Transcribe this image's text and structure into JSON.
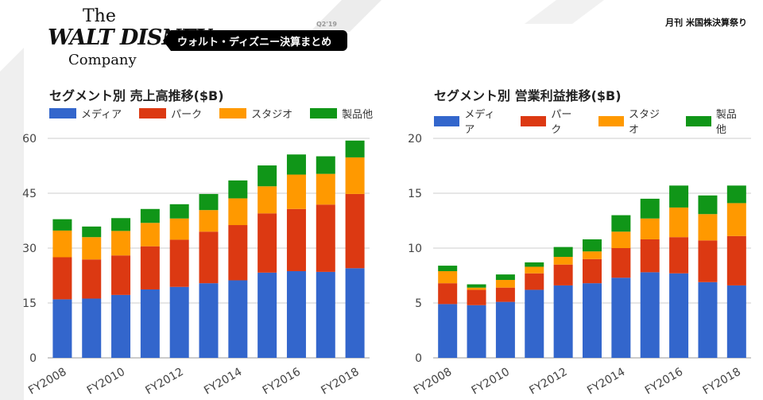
{
  "header": {
    "logo_the": "The",
    "logo_walt_disney": "WALT DISNEY",
    "logo_company": "Company",
    "quarter": "Q2'19",
    "banner_title": "ウォルト・ディズニー決算まとめ",
    "publication": "月刊 米国株決算祭り"
  },
  "colors": {
    "media": "#3366cc",
    "parks": "#dc3912",
    "studio": "#ff9900",
    "products": "#109618"
  },
  "chart_data": [
    {
      "type": "bar",
      "stacked": true,
      "title": "セグメント別 売上高推移($B)",
      "categories": [
        "FY2008",
        "FY2009",
        "FY2010",
        "FY2011",
        "FY2012",
        "FY2013",
        "FY2014",
        "FY2015",
        "FY2016",
        "FY2017",
        "FY2018"
      ],
      "x_tick_labels": [
        "FY2008",
        "FY2010",
        "FY2012",
        "FY2014",
        "FY2016",
        "FY2018"
      ],
      "y_ticks": [
        "0",
        "15",
        "30",
        "45",
        "60"
      ],
      "ylim": [
        0,
        60
      ],
      "legend_position": "top",
      "grid": true,
      "series": [
        {
          "name": "メディア",
          "color_key": "media",
          "values": [
            16.0,
            16.2,
            17.2,
            18.7,
            19.4,
            20.4,
            21.2,
            23.3,
            23.7,
            23.5,
            24.5
          ]
        },
        {
          "name": "パーク",
          "color_key": "parks",
          "values": [
            11.5,
            10.7,
            10.8,
            11.8,
            12.9,
            14.1,
            15.1,
            16.2,
            17.0,
            18.4,
            20.3
          ]
        },
        {
          "name": "スタジオ",
          "color_key": "studio",
          "values": [
            7.3,
            6.1,
            6.7,
            6.4,
            5.8,
            5.9,
            7.3,
            7.4,
            9.4,
            8.4,
            10.0
          ]
        },
        {
          "name": "製品他",
          "color_key": "products",
          "values": [
            3.1,
            2.9,
            3.5,
            3.8,
            3.9,
            4.4,
            4.9,
            5.7,
            5.5,
            4.8,
            4.6
          ]
        }
      ]
    },
    {
      "type": "bar",
      "stacked": true,
      "title": "セグメント別 営業利益推移($B)",
      "categories": [
        "FY2008",
        "FY2009",
        "FY2010",
        "FY2011",
        "FY2012",
        "FY2013",
        "FY2014",
        "FY2015",
        "FY2016",
        "FY2017",
        "FY2018"
      ],
      "x_tick_labels": [
        "FY2008",
        "FY2010",
        "FY2012",
        "FY2014",
        "FY2016",
        "FY2018"
      ],
      "y_ticks": [
        "0",
        "5",
        "10",
        "15",
        "20"
      ],
      "ylim": [
        0,
        20
      ],
      "legend_position": "top",
      "grid": true,
      "series": [
        {
          "name": "メディア",
          "color_key": "media",
          "values": [
            4.9,
            4.8,
            5.1,
            6.2,
            6.6,
            6.8,
            7.3,
            7.8,
            7.7,
            6.9,
            6.6
          ]
        },
        {
          "name": "パーク",
          "color_key": "parks",
          "values": [
            1.9,
            1.4,
            1.3,
            1.5,
            1.9,
            2.2,
            2.7,
            3.0,
            3.3,
            3.8,
            4.5
          ]
        },
        {
          "name": "スタジオ",
          "color_key": "studio",
          "values": [
            1.1,
            0.2,
            0.7,
            0.6,
            0.7,
            0.7,
            1.5,
            1.9,
            2.7,
            2.4,
            3.0
          ]
        },
        {
          "name": "製品他",
          "color_key": "products",
          "values": [
            0.5,
            0.3,
            0.5,
            0.4,
            0.9,
            1.1,
            1.5,
            1.8,
            2.0,
            1.7,
            1.6
          ]
        }
      ]
    }
  ]
}
